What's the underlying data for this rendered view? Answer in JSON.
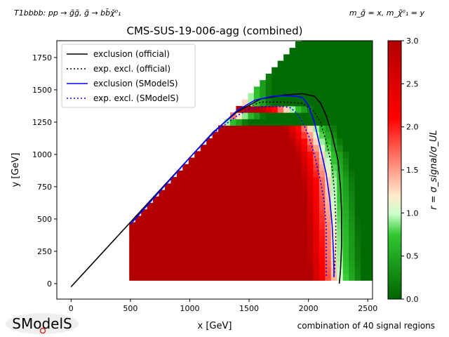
{
  "header": {
    "process": "T1bbbb: pp → g̃g̃, g̃ → bb̄χ̃⁰₁",
    "mass_assignment": "m_g̃ = x, m_χ̃⁰₁ = y"
  },
  "footer": {
    "signal_regions_note": "combination of 40 signal regions",
    "logo_text": "SModelS"
  },
  "colors": {
    "official": "#000000",
    "smodels": "#0000ff",
    "cmap_low": "#006400",
    "cmap_mid_low": "#90ee90",
    "cmap_mid": "#ffebcd",
    "cmap_mid_high": "#ff0000",
    "cmap_high": "#b20000"
  },
  "chart_data": {
    "type": "heatmap",
    "title": "CMS-SUS-19-006-agg (combined)",
    "xlabel": "x [GeV]",
    "ylabel": "y [GeV]",
    "xlim": [
      -120,
      2540
    ],
    "ylim": [
      -120,
      1880
    ],
    "xticks": [
      "0",
      "500",
      "1000",
      "1500",
      "2000",
      "2500"
    ],
    "yticks": [
      "0",
      "250",
      "500",
      "750",
      "1000",
      "1250",
      "1500",
      "1750"
    ],
    "colorbar": {
      "label": "r = σ_signal/σ_UL",
      "range": [
        0,
        3
      ],
      "ticks": [
        "0.0",
        "0.5",
        "1.0",
        "1.5",
        "2.0",
        "2.5",
        "3.0"
      ]
    },
    "heatmap": {
      "x_range": [
        490,
        2530
      ],
      "y_range": [
        25,
        1880
      ],
      "x_step": 50,
      "y_step": 50,
      "diagonal_offset": 25,
      "r_model": {
        "r_max": 3.0,
        "contour_r": 1.0,
        "plateau_end_x": 1500,
        "contour_points": [
          [
            1300,
            1250
          ],
          [
            1500,
            1320
          ],
          [
            1700,
            1360
          ],
          [
            1850,
            1350
          ],
          [
            1950,
            1320
          ],
          [
            2050,
            1200
          ],
          [
            2150,
            1000
          ],
          [
            2200,
            800
          ],
          [
            2220,
            600
          ],
          [
            2240,
            400
          ],
          [
            2250,
            200
          ],
          [
            2270,
            25
          ]
        ]
      }
    },
    "series": [
      {
        "name": "exclusion (official)",
        "style": "solid",
        "color": "#000000",
        "points": [
          [
            0,
            -25
          ],
          [
            500,
            475
          ],
          [
            1000,
            975
          ],
          [
            1200,
            1175
          ],
          [
            1400,
            1330
          ],
          [
            1600,
            1430
          ],
          [
            1800,
            1460
          ],
          [
            1950,
            1470
          ],
          [
            2050,
            1450
          ],
          [
            2100,
            1400
          ],
          [
            2150,
            1300
          ],
          [
            2200,
            1150
          ],
          [
            2250,
            950
          ],
          [
            2270,
            750
          ],
          [
            2280,
            550
          ],
          [
            2280,
            300
          ],
          [
            2270,
            100
          ],
          [
            2260,
            0
          ]
        ]
      },
      {
        "name": "exp. excl. (official)",
        "style": "dotted",
        "color": "#000000",
        "points": [
          [
            1500,
            1370
          ],
          [
            1600,
            1405
          ],
          [
            1800,
            1405
          ],
          [
            1950,
            1395
          ],
          [
            2050,
            1330
          ],
          [
            2100,
            1250
          ],
          [
            2150,
            1100
          ],
          [
            2200,
            900
          ],
          [
            2220,
            700
          ],
          [
            2230,
            500
          ],
          [
            2230,
            300
          ],
          [
            2220,
            100
          ],
          [
            2215,
            50
          ]
        ]
      },
      {
        "name": "exclusion (SModelS)",
        "style": "solid",
        "color": "#0000ff",
        "points": [
          [
            500,
            460
          ],
          [
            1000,
            975
          ],
          [
            1200,
            1170
          ],
          [
            1400,
            1340
          ],
          [
            1550,
            1420
          ],
          [
            1700,
            1450
          ],
          [
            1800,
            1455
          ],
          [
            1900,
            1450
          ],
          [
            1950,
            1440
          ],
          [
            2000,
            1380
          ],
          [
            2050,
            1250
          ],
          [
            2100,
            1050
          ],
          [
            2150,
            850
          ],
          [
            2180,
            650
          ],
          [
            2200,
            450
          ],
          [
            2210,
            250
          ],
          [
            2215,
            100
          ],
          [
            2215,
            50
          ]
        ]
      },
      {
        "name": "exp. excl. (SModelS)",
        "style": "dotted",
        "color": "#0000ff",
        "points": [
          [
            500,
            460
          ],
          [
            1000,
            975
          ],
          [
            1200,
            1165
          ],
          [
            1400,
            1300
          ],
          [
            1500,
            1350
          ],
          [
            1600,
            1370
          ],
          [
            1800,
            1370
          ],
          [
            1850,
            1360
          ],
          [
            1900,
            1320
          ],
          [
            1950,
            1250
          ],
          [
            2000,
            1150
          ],
          [
            2050,
            1000
          ],
          [
            2100,
            800
          ],
          [
            2130,
            650
          ],
          [
            2150,
            450
          ],
          [
            2150,
            250
          ],
          [
            2150,
            100
          ],
          [
            2150,
            50
          ]
        ]
      }
    ],
    "legend": {
      "position": "top-left",
      "entries": [
        {
          "label": "exclusion (official)",
          "color": "#000000",
          "style": "solid"
        },
        {
          "label": "exp. excl. (official)",
          "color": "#000000",
          "style": "dotted"
        },
        {
          "label": "exclusion (SModelS)",
          "color": "#0000ff",
          "style": "solid"
        },
        {
          "label": "exp. excl. (SModelS)",
          "color": "#0000ff",
          "style": "dotted"
        }
      ]
    }
  }
}
